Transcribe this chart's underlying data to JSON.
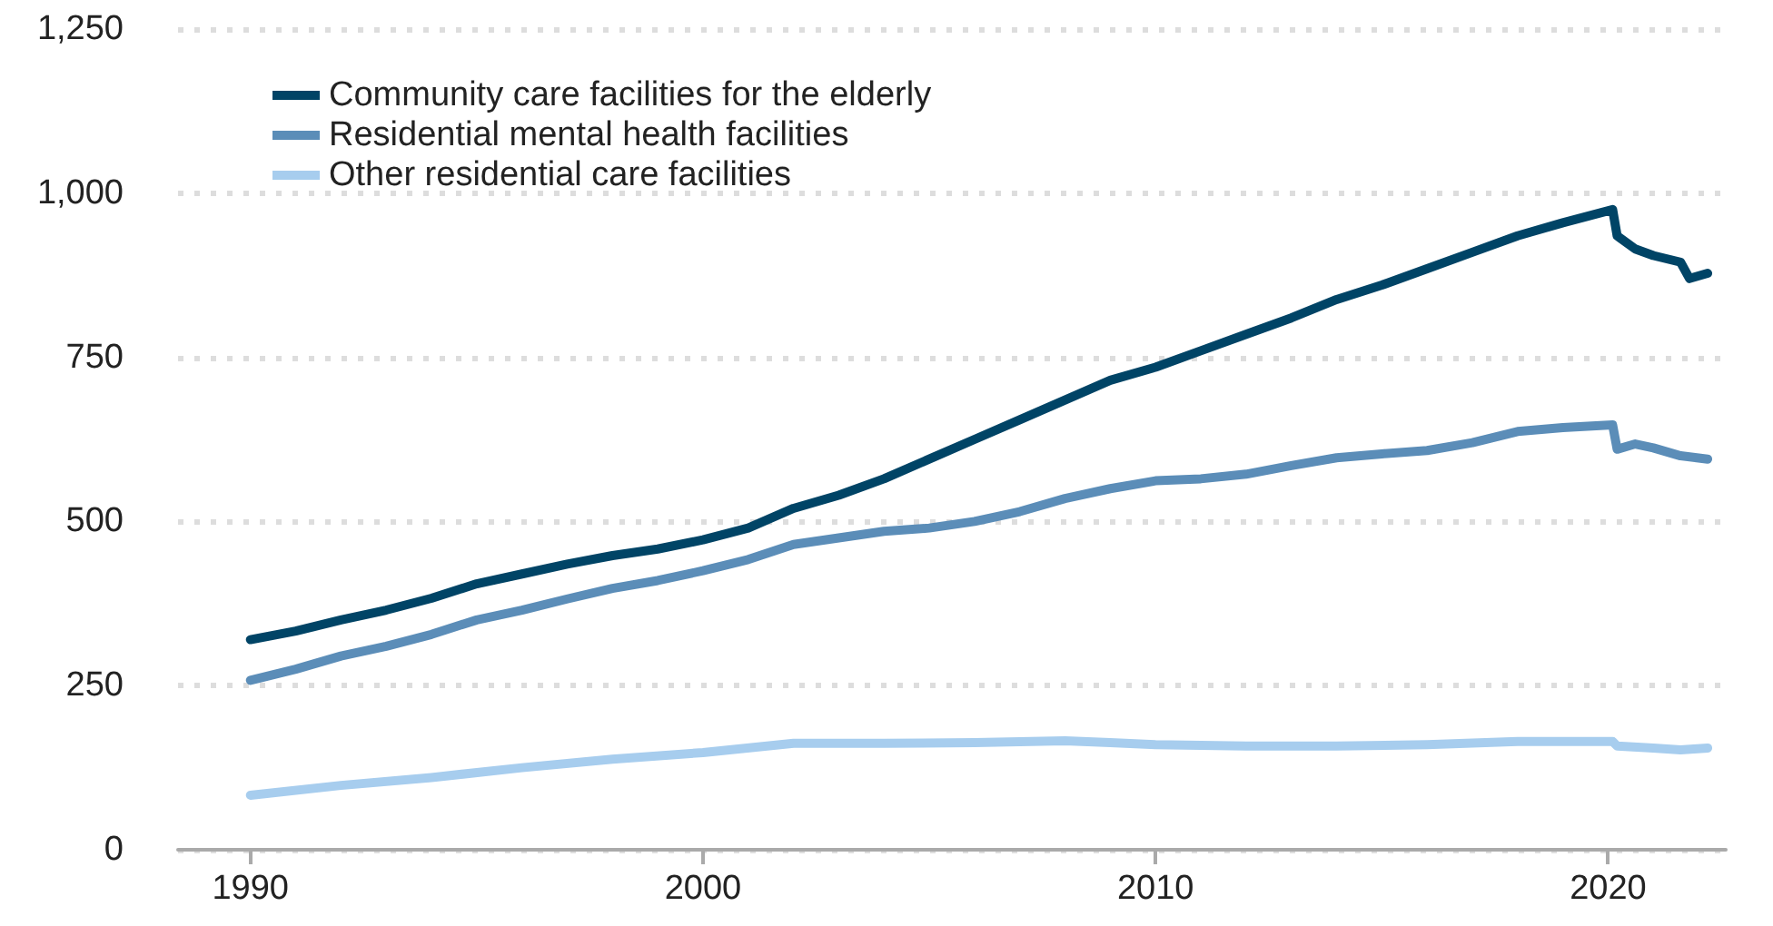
{
  "chart_data": {
    "type": "line",
    "xlim": [
      1988.4,
      2022.6
    ],
    "xticks": [
      1990,
      2000,
      2010,
      2020
    ],
    "ylim": [
      0,
      1250
    ],
    "yticks": [
      0,
      250,
      500,
      750,
      {
        "value": 1000,
        "label": "1,000"
      },
      {
        "value": 1250,
        "label": "1,250"
      }
    ],
    "grid": "y",
    "legend": "top left",
    "line_style": "solid",
    "marker": "none",
    "series": [
      {
        "name": "Community care facilities for the elderly",
        "color": "#004466",
        "x": [
          1990,
          1991,
          1992,
          1993,
          1994,
          1995,
          1996,
          1997,
          1998,
          1999,
          2000,
          2001,
          2002,
          2003,
          2004,
          2005,
          2006,
          2007,
          2008,
          2009,
          2010,
          2011,
          2012,
          2013,
          2014,
          2015,
          2016,
          2017,
          2018,
          2019,
          2020.1,
          2020.2,
          2020.6,
          2021,
          2021.6,
          2021.8,
          2022.2
        ],
        "values": [
          320,
          333,
          350,
          365,
          383,
          405,
          420,
          435,
          448,
          458,
          472,
          490,
          520,
          540,
          565,
          595,
          625,
          655,
          685,
          715,
          735,
          760,
          785,
          810,
          838,
          860,
          885,
          910,
          935,
          955,
          975,
          935,
          915,
          905,
          895,
          870,
          878
        ]
      },
      {
        "name": "Residential mental health facilities",
        "color": "#5b8db8",
        "x": [
          1990,
          1991,
          1992,
          1993,
          1994,
          1995,
          1996,
          1997,
          1998,
          1999,
          2000,
          2001,
          2002,
          2003,
          2004,
          2005,
          2006,
          2007,
          2008,
          2009,
          2010,
          2011,
          2012,
          2013,
          2014,
          2015,
          2016,
          2017,
          2018,
          2019,
          2020.1,
          2020.2,
          2020.6,
          2021,
          2021.6,
          2022.2
        ],
        "values": [
          258,
          275,
          295,
          310,
          328,
          350,
          365,
          382,
          398,
          410,
          425,
          442,
          465,
          475,
          485,
          490,
          500,
          515,
          535,
          550,
          562,
          565,
          572,
          585,
          597,
          603,
          608,
          620,
          637,
          643,
          647,
          610,
          618,
          612,
          600,
          595
        ]
      },
      {
        "name": "Other residential care facilities",
        "color": "#a7cdee",
        "x": [
          1990,
          1992,
          1994,
          1996,
          1998,
          2000,
          2002,
          2004,
          2006,
          2008,
          2009,
          2010,
          2012,
          2014,
          2016,
          2018,
          2020.1,
          2020.2,
          2021,
          2021.6,
          2022.2
        ],
        "values": [
          83,
          98,
          110,
          125,
          138,
          148,
          162,
          162,
          163,
          166,
          163,
          160,
          158,
          158,
          160,
          165,
          165,
          158,
          155,
          152,
          155
        ]
      }
    ]
  }
}
